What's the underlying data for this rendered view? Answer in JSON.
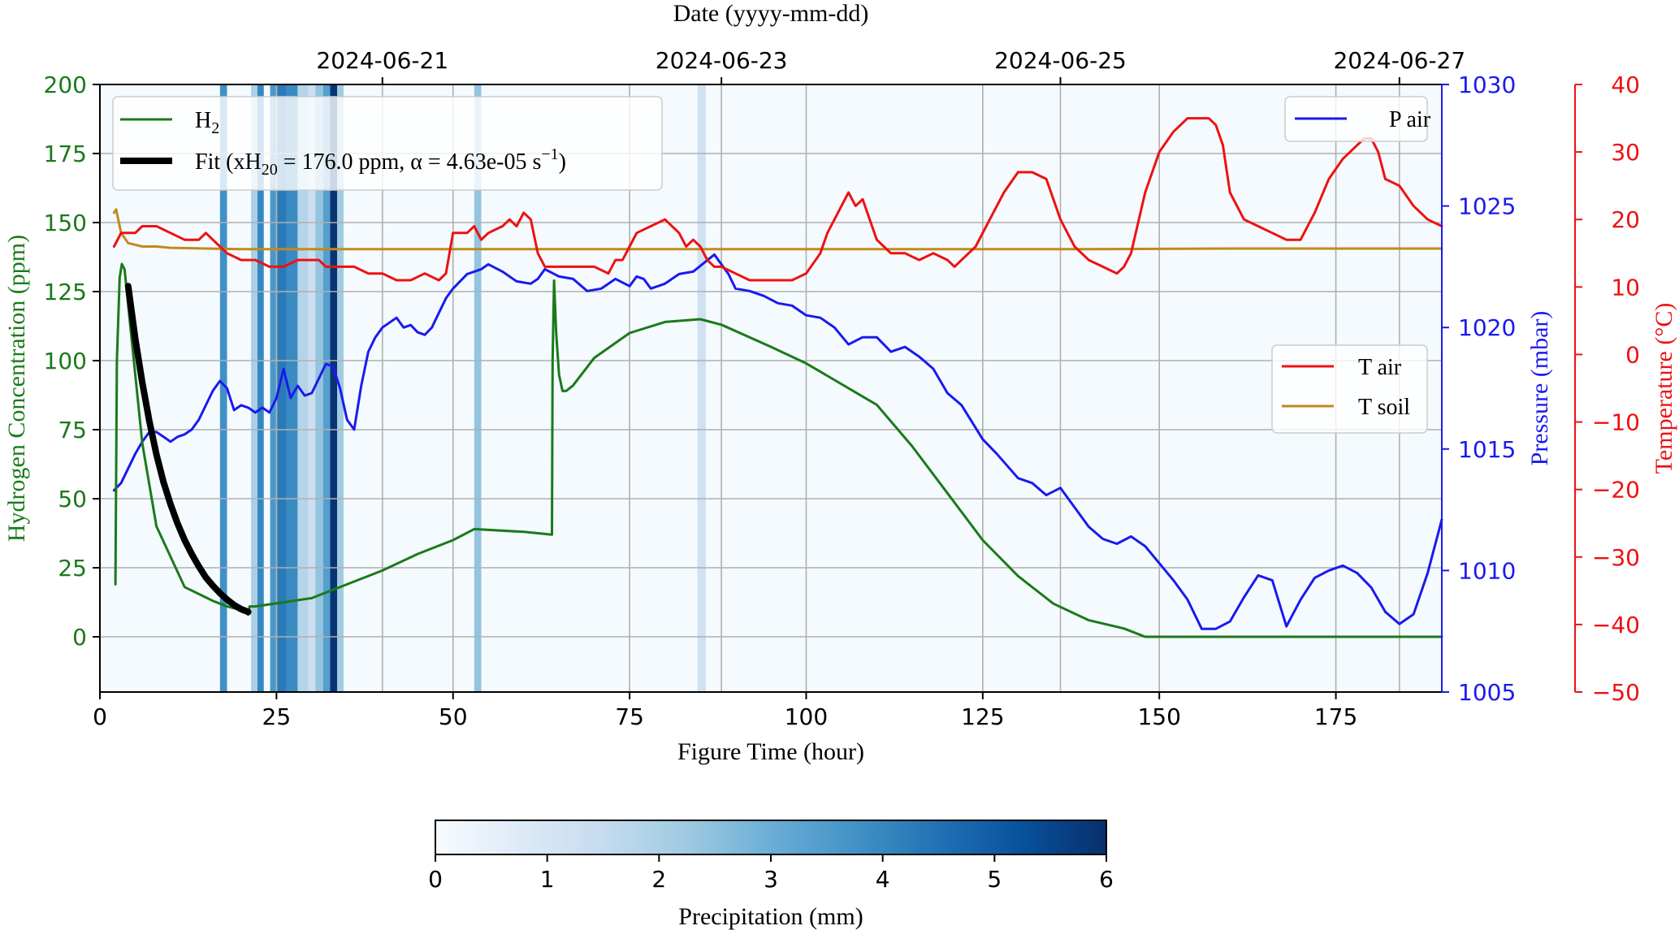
{
  "chart_data": {
    "type": "line",
    "top_axis_label": "Date (yyyy-mm-dd)",
    "top_ticks": [
      {
        "date": "2024-06-21",
        "hour": 40
      },
      {
        "date": "2024-06-23",
        "hour": 88
      },
      {
        "date": "2024-06-25",
        "hour": 136
      },
      {
        "date": "2024-06-27",
        "hour": 184
      }
    ],
    "xlabel": "Figure Time (hour)",
    "xlim": [
      0,
      190
    ],
    "xticks": [
      0,
      25,
      50,
      75,
      100,
      125,
      150,
      175
    ],
    "left_axis": {
      "label": "Hydrogen Concentration (ppm)",
      "ylim": [
        -20,
        200
      ],
      "ticks": [
        0,
        25,
        50,
        75,
        100,
        125,
        150,
        175,
        200
      ],
      "color": "#1a7a1a"
    },
    "pressure_axis": {
      "label": "Pressure (mbar)",
      "ylim": [
        1005,
        1030
      ],
      "ticks": [
        1005,
        1010,
        1015,
        1020,
        1025,
        1030
      ],
      "color": "#1a1aee"
    },
    "temperature_axis": {
      "label": "Temperature (°C)",
      "ylim": [
        -50,
        40
      ],
      "ticks": [
        -50,
        -40,
        -30,
        -20,
        -10,
        0,
        10,
        20,
        30,
        40
      ],
      "color": "#ee1111"
    },
    "legend_top_left": {
      "h2": "H",
      "h2_sub": "2",
      "fit_prefix": "Fit (xH",
      "fit_sub": "20",
      "fit_middle": " = 176.0 ppm, α = 4.63e-05 s",
      "fit_sup": "−1",
      "fit_suffix": ")"
    },
    "legend_top_right": {
      "p_air": "P air"
    },
    "legend_mid_right": {
      "t_air": "T air",
      "t_soil": "T soil"
    },
    "colorbar": {
      "label": "Precipitation (mm)",
      "range": [
        0,
        6
      ],
      "ticks": [
        0,
        1,
        2,
        3,
        4,
        5,
        6
      ]
    },
    "colors": {
      "h2": "#1a7a1a",
      "fit": "#000000",
      "p_air": "#1a1aee",
      "t_air": "#ee1111",
      "t_soil": "#c08a1c"
    },
    "precipitation": [
      {
        "x0": 17,
        "x1": 18,
        "mm": 3.8
      },
      {
        "x0": 21.4,
        "x1": 22.3,
        "mm": 2.0
      },
      {
        "x0": 22.3,
        "x1": 23.2,
        "mm": 4.0
      },
      {
        "x0": 24.1,
        "x1": 25.1,
        "mm": 3.6
      },
      {
        "x0": 25.1,
        "x1": 26.4,
        "mm": 4.3
      },
      {
        "x0": 26.4,
        "x1": 28.0,
        "mm": 3.9
      },
      {
        "x0": 28.0,
        "x1": 29.5,
        "mm": 1.8
      },
      {
        "x0": 29.5,
        "x1": 30.5,
        "mm": 1.3
      },
      {
        "x0": 30.5,
        "x1": 31.6,
        "mm": 2.4
      },
      {
        "x0": 31.6,
        "x1": 32.6,
        "mm": 3.4
      },
      {
        "x0": 32.6,
        "x1": 33.6,
        "mm": 5.9
      },
      {
        "x0": 33.6,
        "x1": 34.5,
        "mm": 2.2
      },
      {
        "x0": 53,
        "x1": 54,
        "mm": 2.4
      },
      {
        "x0": 84.6,
        "x1": 85.8,
        "mm": 1.2
      }
    ],
    "series": [
      {
        "name": "H₂",
        "axis": "left",
        "x": [
          2.2,
          2.4,
          2.8,
          3.1,
          3.5,
          4.0,
          5.0,
          6.0,
          8.0,
          12.0,
          16.0,
          18.0,
          19.5,
          20.3,
          21.0,
          21.2,
          22,
          30,
          40,
          45,
          50,
          53,
          60,
          64,
          64.1,
          64.3,
          64.6,
          65,
          65.5,
          66,
          67,
          70,
          75,
          80,
          85,
          88,
          95,
          100,
          110,
          115,
          120,
          125,
          130,
          135,
          140,
          145,
          148,
          155,
          165,
          175,
          185,
          190
        ],
        "y": [
          19,
          100,
          130,
          135,
          133,
          120,
          95,
          70,
          40,
          18,
          13,
          11,
          10,
          9.5,
          8,
          11,
          11,
          14,
          24,
          30,
          35,
          39,
          38,
          37,
          100,
          129,
          110,
          95,
          89,
          89,
          91,
          101,
          110,
          114,
          115,
          113,
          105,
          99,
          84,
          69,
          52,
          35,
          22,
          12,
          6,
          3,
          0,
          0,
          0,
          0,
          0,
          0
        ]
      },
      {
        "name": "Fit (xH20 = 176.0 ppm, α = 4.63e-05 s−1)",
        "axis": "left",
        "x": [
          4,
          5,
          6,
          7,
          8,
          9,
          10,
          11,
          12,
          13,
          14,
          15,
          16,
          17,
          18,
          19,
          20,
          21
        ],
        "y": [
          127,
          108,
          92,
          78,
          66,
          56,
          48,
          41,
          35,
          30,
          25.5,
          21.5,
          18.5,
          15.8,
          13.5,
          11.5,
          10,
          9
        ]
      },
      {
        "name": "P air",
        "axis": "pressure",
        "x": [
          2,
          3,
          4,
          5,
          6,
          7,
          8,
          9,
          10,
          11,
          12,
          13,
          14,
          15,
          16,
          17,
          18,
          19,
          20,
          21,
          22,
          23,
          24,
          25,
          26,
          27,
          28,
          29,
          30,
          31,
          32,
          33,
          34,
          35,
          36,
          37,
          38,
          39,
          40,
          41,
          42,
          43,
          44,
          45,
          46,
          47,
          48,
          49,
          50,
          52,
          54,
          55,
          57,
          59,
          61,
          62,
          63,
          65,
          67,
          69,
          71,
          73,
          75,
          76,
          77,
          78,
          80,
          82,
          84,
          87,
          89,
          90,
          92,
          94,
          96,
          98,
          100,
          102,
          104,
          106,
          108,
          110,
          112,
          114,
          116,
          118,
          120,
          122,
          125,
          127,
          130,
          132,
          134,
          136,
          138,
          140,
          142,
          144,
          146,
          148,
          150,
          152,
          154,
          156,
          158,
          160,
          162,
          164,
          166,
          168,
          170,
          172,
          174,
          176,
          178,
          180,
          182,
          184,
          186,
          188,
          190
        ],
        "y": [
          1013.3,
          1013.6,
          1014.2,
          1014.8,
          1015.3,
          1015.7,
          1015.7,
          1015.5,
          1015.3,
          1015.5,
          1015.6,
          1015.8,
          1016.2,
          1016.8,
          1017.4,
          1017.8,
          1017.5,
          1016.6,
          1016.8,
          1016.7,
          1016.5,
          1016.7,
          1016.5,
          1017.1,
          1018.3,
          1017.1,
          1017.6,
          1017.2,
          1017.3,
          1017.9,
          1018.5,
          1018.4,
          1017.5,
          1016.2,
          1015.8,
          1017.6,
          1019.0,
          1019.6,
          1020.0,
          1020.2,
          1020.4,
          1020.0,
          1020.1,
          1019.8,
          1019.7,
          1020.0,
          1020.6,
          1021.2,
          1021.6,
          1022.2,
          1022.4,
          1022.6,
          1022.3,
          1021.9,
          1021.8,
          1022.0,
          1022.4,
          1022.1,
          1022.0,
          1021.5,
          1021.6,
          1022.0,
          1021.7,
          1022.1,
          1022.0,
          1021.6,
          1021.8,
          1022.2,
          1022.3,
          1023.0,
          1022.2,
          1021.6,
          1021.5,
          1021.3,
          1021.0,
          1020.9,
          1020.5,
          1020.4,
          1020.0,
          1019.3,
          1019.6,
          1019.6,
          1019.0,
          1019.2,
          1018.8,
          1018.3,
          1017.3,
          1016.8,
          1015.4,
          1014.8,
          1013.8,
          1013.6,
          1013.1,
          1013.4,
          1012.6,
          1011.8,
          1011.3,
          1011.1,
          1011.4,
          1011.0,
          1010.3,
          1009.6,
          1008.8,
          1007.6,
          1007.6,
          1007.9,
          1008.9,
          1009.8,
          1009.6,
          1007.7,
          1008.8,
          1009.7,
          1010.0,
          1010.2,
          1009.9,
          1009.3,
          1008.3,
          1007.8,
          1008.2,
          1009.9,
          1012.1
        ]
      },
      {
        "name": "T air",
        "axis": "temperature",
        "x": [
          2,
          3,
          4,
          5,
          6,
          7,
          8,
          10,
          12,
          14,
          15,
          16,
          17,
          18,
          20,
          22,
          24,
          26,
          28,
          29,
          30,
          31,
          32,
          33,
          34,
          36,
          38,
          40,
          42,
          44,
          46,
          48,
          49,
          50,
          51,
          52,
          53,
          54,
          55,
          57,
          58,
          59,
          60,
          61,
          62,
          63,
          64,
          65,
          66,
          67,
          68,
          70,
          72,
          73,
          74,
          75,
          76,
          78,
          80,
          82,
          83,
          84,
          85,
          86,
          87,
          88,
          90,
          92,
          94,
          96,
          98,
          100,
          102,
          103,
          104,
          105,
          106,
          107,
          108,
          109,
          110,
          111,
          112,
          114,
          116,
          118,
          120,
          121,
          122,
          124,
          126,
          128,
          130,
          131,
          132,
          134,
          136,
          138,
          140,
          142,
          144,
          145,
          146,
          148,
          150,
          152,
          154,
          156,
          157,
          158,
          159,
          160,
          162,
          164,
          166,
          168,
          170,
          172,
          174,
          176,
          178,
          179,
          180,
          181,
          182,
          184,
          186,
          188,
          190
        ],
        "y": [
          16,
          18,
          18,
          18,
          19,
          19,
          19,
          18,
          17,
          17,
          18,
          17,
          16,
          15,
          14,
          14,
          13,
          13,
          14,
          14,
          14,
          14,
          13,
          13,
          13,
          13,
          12,
          12,
          11,
          11,
          12,
          11,
          12,
          18,
          18,
          18,
          19,
          17,
          18,
          19,
          20,
          19,
          21,
          20,
          15,
          13,
          13,
          13,
          13,
          13,
          13,
          13,
          12,
          14,
          14,
          16,
          18,
          19,
          20,
          18,
          16,
          17,
          16,
          14,
          13,
          13,
          12,
          11,
          11,
          11,
          11,
          12,
          15,
          18,
          20,
          22,
          24,
          22,
          23,
          20,
          17,
          16,
          15,
          15,
          14,
          15,
          14,
          13,
          14,
          16,
          20,
          24,
          27,
          27,
          27,
          26,
          20,
          16,
          14,
          13,
          12,
          13,
          15,
          24,
          30,
          33,
          35,
          35,
          35,
          34,
          31,
          24,
          20,
          19,
          18,
          17,
          17,
          21,
          26,
          29,
          31,
          32,
          32,
          30,
          26,
          25,
          22,
          20,
          19
        ]
      },
      {
        "name": "T soil",
        "axis": "temperature",
        "x": [
          2,
          2.3,
          2.7,
          3,
          4,
          6,
          8,
          10,
          20,
          30,
          40,
          60,
          80,
          100,
          120,
          140,
          160,
          180,
          190
        ],
        "y": [
          21,
          21.5,
          19.5,
          18,
          16.5,
          16,
          16,
          15.8,
          15.6,
          15.6,
          15.6,
          15.6,
          15.6,
          15.6,
          15.6,
          15.6,
          15.7,
          15.7,
          15.7
        ]
      }
    ]
  }
}
